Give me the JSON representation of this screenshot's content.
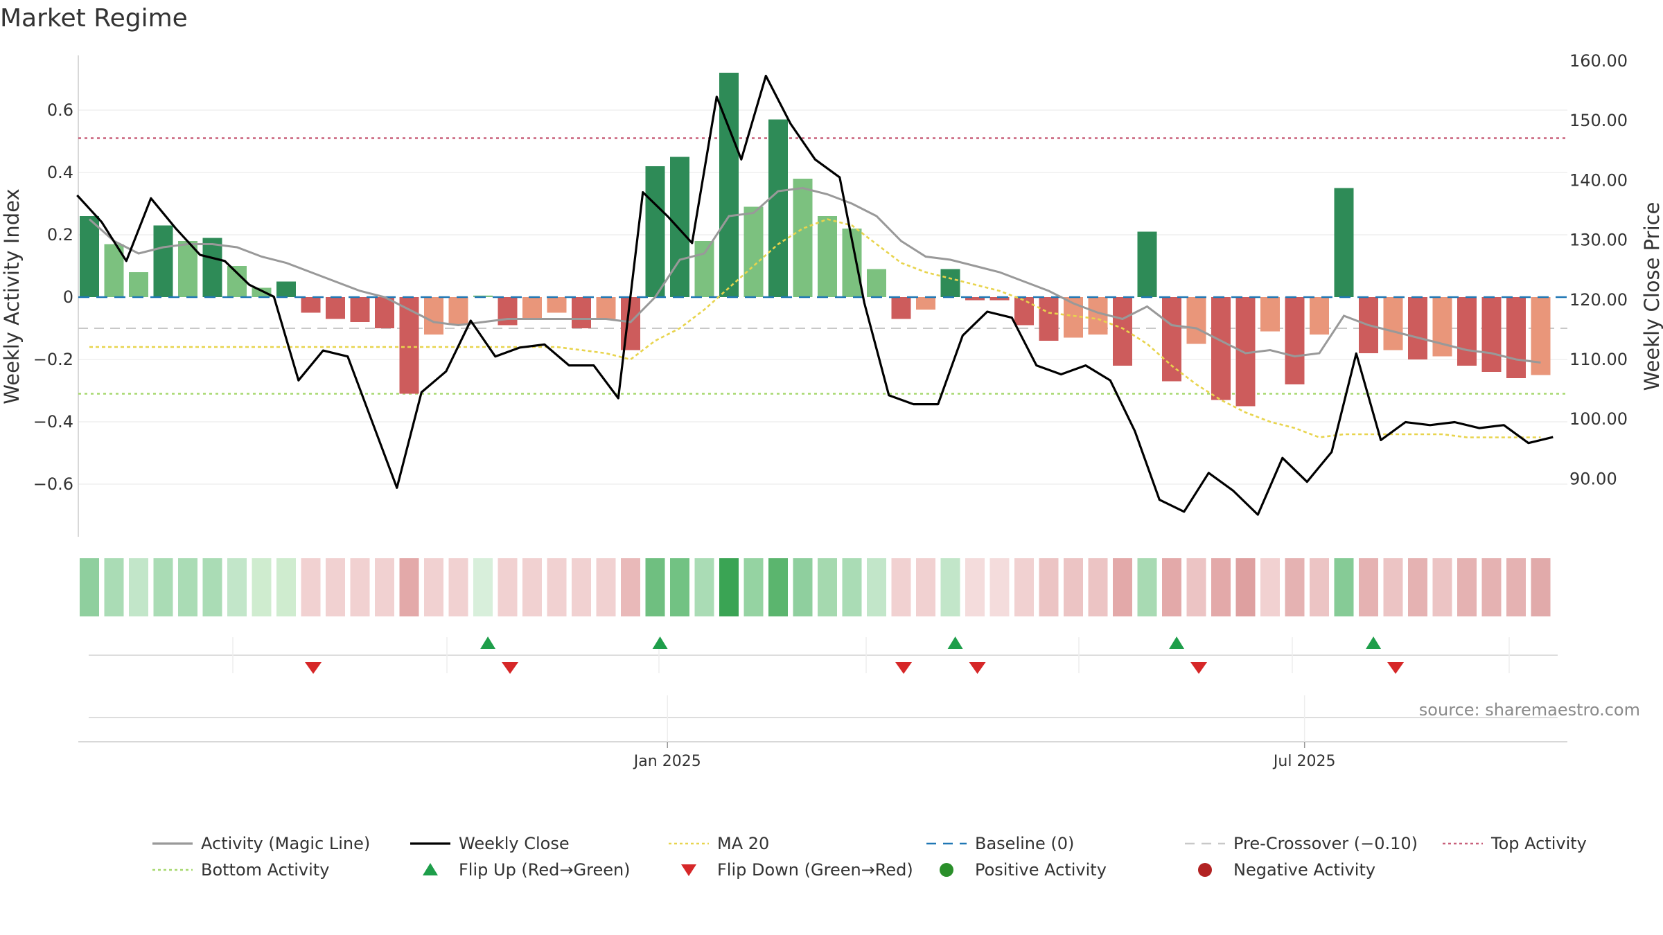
{
  "chart_data": {
    "type": "bar",
    "title": "Market Regime",
    "source": "source: sharemaestro.com",
    "y_left_label": "Weekly Activity Index",
    "y_right_label": "Weekly Close Price",
    "y_left_ticks": [
      "0.6",
      "0.4",
      "0.2",
      "0",
      "−0.2",
      "−0.4",
      "−0.6"
    ],
    "y_left_tick_values": [
      0.6,
      0.4,
      0.2,
      0,
      -0.2,
      -0.4,
      -0.6
    ],
    "y_right_ticks": [
      "160.00",
      "150.00",
      "140.00",
      "130.00",
      "120.00",
      "110.00",
      "100.00",
      "90.00"
    ],
    "y_right_tick_values": [
      160,
      150,
      140,
      130,
      120,
      110,
      100,
      90
    ],
    "ylim_left": [
      -0.77,
      0.78
    ],
    "x_ticks": [
      {
        "label": "Jan 2025",
        "index": 23.5
      },
      {
        "label": "Jul 2025",
        "index": 49.4
      }
    ],
    "activity": [
      0.26,
      0.17,
      0.08,
      0.23,
      0.18,
      0.19,
      0.1,
      0.03,
      0.05,
      -0.05,
      -0.07,
      -0.08,
      -0.1,
      -0.31,
      -0.12,
      -0.09,
      0.005,
      -0.09,
      -0.07,
      -0.05,
      -0.1,
      -0.07,
      -0.17,
      0.42,
      0.45,
      0.18,
      0.72,
      0.29,
      0.57,
      0.38,
      0.26,
      0.22,
      0.09,
      -0.07,
      -0.04,
      0.09,
      -0.01,
      -0.01,
      -0.09,
      -0.14,
      -0.13,
      -0.12,
      -0.22,
      0.21,
      -0.27,
      -0.15,
      -0.33,
      -0.35,
      -0.11,
      -0.28,
      -0.12,
      0.35,
      -0.18,
      -0.17,
      -0.2,
      -0.19,
      -0.22,
      -0.24,
      -0.26,
      -0.25
    ],
    "bar_class": [
      "sg",
      "wg",
      "wg",
      "sg",
      "wg",
      "sg",
      "wg",
      "wg",
      "sg",
      "sr",
      "sr",
      "sr",
      "sr",
      "sr",
      "wr",
      "wr",
      "wg",
      "sr",
      "wr",
      "wr",
      "sr",
      "wr",
      "sr",
      "sg",
      "sg",
      "wg",
      "sg",
      "wg",
      "sg",
      "wg",
      "wg",
      "wg",
      "wg",
      "sr",
      "wr",
      "sg",
      "sr",
      "sr",
      "sr",
      "sr",
      "wr",
      "wr",
      "sr",
      "sg",
      "sr",
      "wr",
      "sr",
      "sr",
      "wr",
      "sr",
      "wr",
      "sg",
      "sr",
      "wr",
      "sr",
      "wr",
      "sr",
      "sr",
      "sr",
      "wr"
    ],
    "magic_line": [
      0.25,
      0.18,
      0.14,
      0.16,
      0.17,
      0.17,
      0.16,
      0.13,
      0.11,
      0.08,
      0.05,
      0.02,
      0.0,
      -0.04,
      -0.08,
      -0.09,
      -0.08,
      -0.07,
      -0.07,
      -0.07,
      -0.07,
      -0.07,
      -0.08,
      0.0,
      0.12,
      0.14,
      0.26,
      0.27,
      0.34,
      0.35,
      0.33,
      0.3,
      0.26,
      0.18,
      0.13,
      0.12,
      0.1,
      0.08,
      0.05,
      0.02,
      -0.02,
      -0.05,
      -0.07,
      -0.03,
      -0.09,
      -0.1,
      -0.14,
      -0.18,
      -0.17,
      -0.19,
      -0.18,
      -0.06,
      -0.09,
      -0.11,
      -0.13,
      -0.15,
      -0.17,
      -0.18,
      -0.2,
      -0.21
    ],
    "weekly_close": [
      137.5,
      133.0,
      126.5,
      137.0,
      132.0,
      127.5,
      126.5,
      122.5,
      120.5,
      106.5,
      111.5,
      110.5,
      99.5,
      88.5,
      104.5,
      108.0,
      116.5,
      110.5,
      112.0,
      112.5,
      109.0,
      109.0,
      103.5,
      138.0,
      134.0,
      129.5,
      154.0,
      143.5,
      157.5,
      149.5,
      143.5,
      140.5,
      119.5,
      104.0,
      102.5,
      102.5,
      114.0,
      118.0,
      117.0,
      109.0,
      107.5,
      109.0,
      106.5,
      98.0,
      86.5,
      84.5,
      91.0,
      88.0,
      84.0,
      93.5,
      89.5,
      94.5,
      111.0,
      96.5,
      99.5,
      99.0,
      99.5,
      98.5,
      99.0,
      96.0,
      97.0
    ],
    "weekly_close_x_offset": -0.5,
    "ma20": [
      -0.16,
      -0.16,
      -0.16,
      -0.16,
      -0.16,
      -0.16,
      -0.16,
      -0.16,
      -0.16,
      -0.16,
      -0.16,
      -0.16,
      -0.16,
      -0.16,
      -0.16,
      -0.16,
      -0.16,
      -0.16,
      -0.16,
      -0.16,
      -0.17,
      -0.18,
      -0.2,
      -0.14,
      -0.1,
      -0.04,
      0.03,
      0.1,
      0.17,
      0.22,
      0.25,
      0.23,
      0.17,
      0.11,
      0.08,
      0.06,
      0.04,
      0.02,
      -0.01,
      -0.05,
      -0.06,
      -0.07,
      -0.1,
      -0.15,
      -0.22,
      -0.28,
      -0.33,
      -0.37,
      -0.4,
      -0.42,
      -0.45,
      -0.44,
      -0.44,
      -0.44,
      -0.44,
      -0.44,
      -0.45,
      -0.45,
      -0.45,
      -0.45
    ],
    "baseline": 0,
    "pre_crossover": -0.1,
    "top_activity": 0.51,
    "bottom_activity": -0.31,
    "strip_colors": [
      "#8fcf9e",
      "#aadcb5",
      "#c2e6c9",
      "#aadcb5",
      "#aadcb5",
      "#aadcb5",
      "#c2e6c9",
      "#cfeccf",
      "#cfeccf",
      "#f1d1d1",
      "#f1d1d1",
      "#f1d1d1",
      "#f1d1d1",
      "#e3a9a9",
      "#f1d1d1",
      "#f1d1d1",
      "#d8efdb",
      "#f1d1d1",
      "#f1d1d1",
      "#f1d1d1",
      "#f1d1d1",
      "#f1d1d1",
      "#e9b9b9",
      "#6fbf80",
      "#72c283",
      "#aadcb5",
      "#3aa454",
      "#95d3a2",
      "#5bb56e",
      "#8fcf9e",
      "#a5d9af",
      "#aadcb5",
      "#c2e6c9",
      "#f1d1d1",
      "#f1d1d1",
      "#c2e6c9",
      "#f4dcdc",
      "#f4dcdc",
      "#f1d1d1",
      "#ecc4c4",
      "#ecc4c4",
      "#ecc4c4",
      "#e3a9a9",
      "#a8dab3",
      "#e3a9a9",
      "#ecc4c4",
      "#e3a9a9",
      "#dea0a0",
      "#f1d1d1",
      "#e5b2b2",
      "#ecc4c4",
      "#86cb96",
      "#e5b2b2",
      "#ecc4c4",
      "#e5b2b2",
      "#ecc4c4",
      "#e5b2b2",
      "#e5b2b2",
      "#e5b2b2",
      "#e1aaaa"
    ],
    "flip_up_indices": [
      16.2,
      23.2,
      35.2,
      44.2,
      52.2
    ],
    "flip_down_indices": [
      9.1,
      17.1,
      33.1,
      36.1,
      45.1,
      53.1
    ],
    "legend": [
      {
        "label": "Activity (Magic Line)",
        "style": "solid",
        "color": "#999999"
      },
      {
        "label": "Weekly Close",
        "style": "solid",
        "color": "#000000"
      },
      {
        "label": "MA 20",
        "style": "dotted",
        "color": "#e8d44d"
      },
      {
        "label": "Baseline (0)",
        "style": "dashed",
        "color": "#1f77b4"
      },
      {
        "label": "Pre-Crossover (−0.10)",
        "style": "dashed",
        "color": "#c8c8c8"
      },
      {
        "label": "Top Activity",
        "style": "dotted",
        "color": "#c8607a"
      },
      {
        "label": "Bottom Activity",
        "style": "dotted",
        "color": "#a6d86e"
      },
      {
        "label": "Flip Up (Red→Green)",
        "style": "tri-up",
        "color": "#1e9e4a"
      },
      {
        "label": "Flip Down (Green→Red)",
        "style": "tri-down",
        "color": "#d62728"
      },
      {
        "label": "Positive Activity",
        "style": "dot",
        "color": "#2a8f2a"
      },
      {
        "label": "Negative Activity",
        "style": "dot",
        "color": "#b22222"
      }
    ],
    "colors": {
      "strong_green": "#2e8b57",
      "weak_green": "#7cc17f",
      "strong_red": "#cd5c5c",
      "weak_red": "#e9967a",
      "magic_line": "#999999",
      "close": "#000000",
      "ma20": "#e8d44d",
      "baseline": "#1f77b4",
      "pre_crossover": "#c8c8c8",
      "top": "#c8607a",
      "bottom": "#a6d86e",
      "flip_up": "#1e9e4a",
      "flip_down": "#d62728"
    }
  }
}
